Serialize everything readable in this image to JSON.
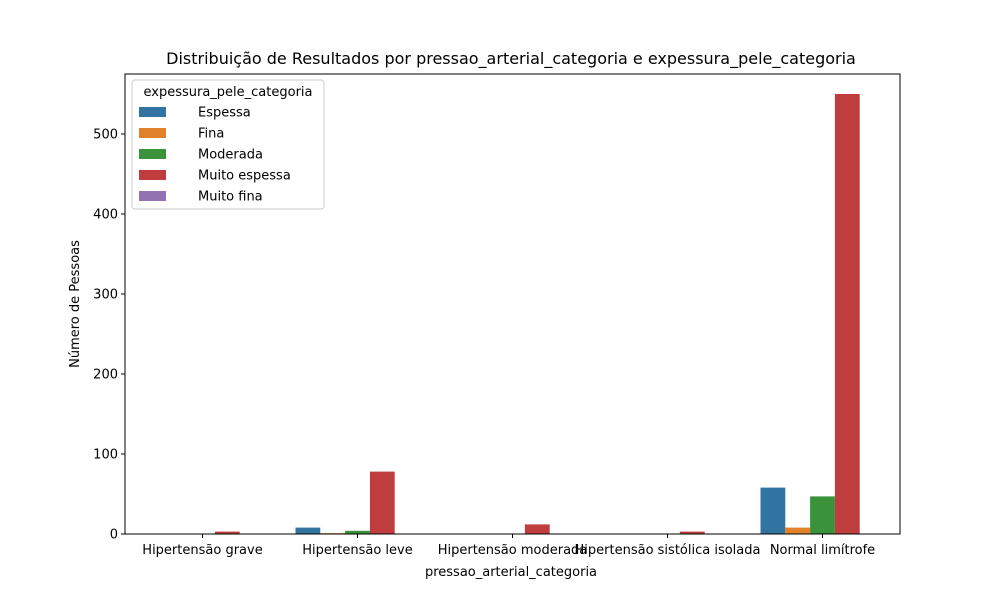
{
  "chart_data": {
    "type": "bar",
    "title": "Distribuição de Resultados por pressao_arterial_categoria e expessura_pele_categoria",
    "xlabel": "pressao_arterial_categoria",
    "ylabel": "Número de Pessoas",
    "ylim": [
      0,
      575
    ],
    "yticks": [
      0,
      100,
      200,
      300,
      400,
      500
    ],
    "categories": [
      "Hipertensão grave",
      "Hipertensão leve",
      "Hipertensão moderada",
      "Hipertensão sistólica isolada",
      "Normal limítrofe"
    ],
    "legend_title": "expessura_pele_categoria",
    "legend_position": "top-left",
    "series": [
      {
        "name": "Espessa",
        "color": "#3274a1",
        "values": [
          0,
          8,
          0,
          0,
          58
        ]
      },
      {
        "name": "Fina",
        "color": "#e1812c",
        "values": [
          0,
          1,
          0,
          0,
          8
        ]
      },
      {
        "name": "Moderada",
        "color": "#3a923a",
        "values": [
          0,
          4,
          0,
          0,
          47
        ]
      },
      {
        "name": "Muito espessa",
        "color": "#c03d3e",
        "values": [
          3,
          78,
          12,
          3,
          550
        ]
      },
      {
        "name": "Muito fina",
        "color": "#9372b2",
        "values": [
          0,
          0,
          0,
          0,
          0
        ]
      }
    ]
  }
}
